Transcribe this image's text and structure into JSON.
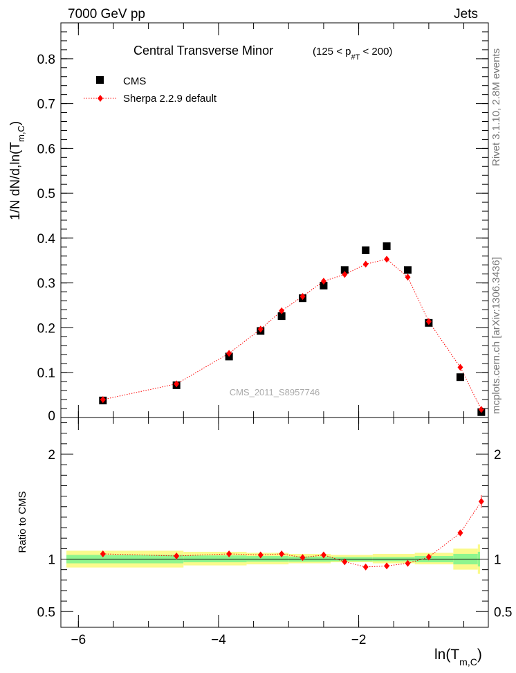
{
  "header": {
    "left": "7000 GeV pp",
    "right": "Jets"
  },
  "side_text": {
    "rivet": "Rivet 3.1.10, 2.8M events",
    "mcplots": "mcplots.cern.ch [arXiv:1306.3436]"
  },
  "plot": {
    "title": "Central Transverse Minor",
    "cut": "(125 < p",
    "cut_sub": "#T",
    "cut_end": " < 200)",
    "watermark": "CMS_2011_S8957746",
    "ylabel": "1/N  dN/d,ln(T",
    "ylabel_sub": "m,C",
    "ylabel_end": ")",
    "ratio_ylabel": "Ratio to CMS",
    "xlabel": "ln(T",
    "xlabel_sub": "m,C",
    "xlabel_end": ")"
  },
  "legend": {
    "cms": "CMS",
    "sherpa": "Sherpa 2.2.9 default"
  },
  "colors": {
    "data": "#000000",
    "mc": "#ff0000",
    "band_inner": "#8ef58e",
    "band_outer": "#fafa8c"
  },
  "chart_data": [
    {
      "type": "scatter",
      "title": "Central Transverse Minor (125 < p_T < 200)",
      "xlabel": "ln(T_m,C)",
      "ylabel": "1/N dN/d,ln(T_m,C)",
      "xlim": [
        -6.25,
        -0.15
      ],
      "ylim": [
        0.0,
        0.88
      ],
      "yticks": [
        0.1,
        0.2,
        0.3,
        0.4,
        0.5,
        0.6,
        0.7,
        0.8
      ],
      "yticklabels": [
        "0.1",
        "0.2",
        "0.3",
        "0.4",
        "0.5",
        "0.6",
        "0.7",
        "0.8"
      ],
      "legend_position": "top-left",
      "series": [
        {
          "name": "CMS",
          "marker": "square",
          "x": [
            -5.65,
            -4.6,
            -3.85,
            -3.4,
            -3.1,
            -2.8,
            -2.5,
            -2.2,
            -1.9,
            -1.6,
            -1.3,
            -1.0,
            -0.55,
            -0.25
          ],
          "y": [
            0.038,
            0.072,
            0.136,
            0.193,
            0.226,
            0.266,
            0.294,
            0.329,
            0.373,
            0.382,
            0.329,
            0.211,
            0.09,
            0.012
          ]
        },
        {
          "name": "Sherpa 2.2.9 default",
          "marker": "diamond",
          "x": [
            -5.65,
            -4.6,
            -3.85,
            -3.4,
            -3.1,
            -2.8,
            -2.5,
            -2.2,
            -1.9,
            -1.6,
            -1.3,
            -1.0,
            -0.55,
            -0.25
          ],
          "y": [
            0.04,
            0.075,
            0.143,
            0.197,
            0.238,
            0.27,
            0.304,
            0.319,
            0.342,
            0.353,
            0.313,
            0.214,
            0.112,
            0.018
          ]
        }
      ]
    },
    {
      "type": "scatter",
      "ylabel": "Ratio to CMS",
      "xlim": [
        -6.25,
        -0.15
      ],
      "ylim": [
        0.35,
        2.35
      ],
      "xticks": [
        -6,
        -4,
        -2
      ],
      "xticklabels": [
        "−6",
        "−4",
        "−2"
      ],
      "yticks": [
        0.5,
        1,
        2
      ],
      "yticklabels": [
        "0.5",
        "1",
        "2"
      ],
      "bins": [
        -6.25,
        -4.5,
        -3.6,
        -3.0,
        -2.4,
        -1.8,
        -1.2,
        -0.65,
        -0.3,
        0.0
      ],
      "band_inner": {
        "low": [
          0.96,
          0.97,
          0.975,
          0.975,
          0.98,
          0.98,
          0.97,
          0.95,
          0.93
        ],
        "high": [
          1.04,
          1.035,
          1.03,
          1.025,
          1.02,
          1.02,
          1.03,
          1.05,
          1.07
        ]
      },
      "band_outer": {
        "low": [
          0.92,
          0.94,
          0.95,
          0.96,
          0.97,
          0.96,
          0.95,
          0.9,
          0.86
        ],
        "high": [
          1.08,
          1.07,
          1.06,
          1.05,
          1.04,
          1.05,
          1.06,
          1.1,
          1.14
        ]
      },
      "series": [
        {
          "name": "Sherpa 2.2.9 default",
          "x": [
            -5.65,
            -4.6,
            -3.85,
            -3.4,
            -3.1,
            -2.8,
            -2.5,
            -2.2,
            -1.9,
            -1.6,
            -1.3,
            -1.0,
            -0.55,
            -0.25
          ],
          "y": [
            1.05,
            1.03,
            1.05,
            1.04,
            1.05,
            1.015,
            1.04,
            0.975,
            0.925,
            0.935,
            0.96,
            1.02,
            1.25,
            1.55
          ],
          "err": [
            0.015,
            0.012,
            0.01,
            0.01,
            0.01,
            0.01,
            0.01,
            0.01,
            0.01,
            0.01,
            0.012,
            0.015,
            0.03,
            0.06
          ]
        }
      ]
    }
  ]
}
